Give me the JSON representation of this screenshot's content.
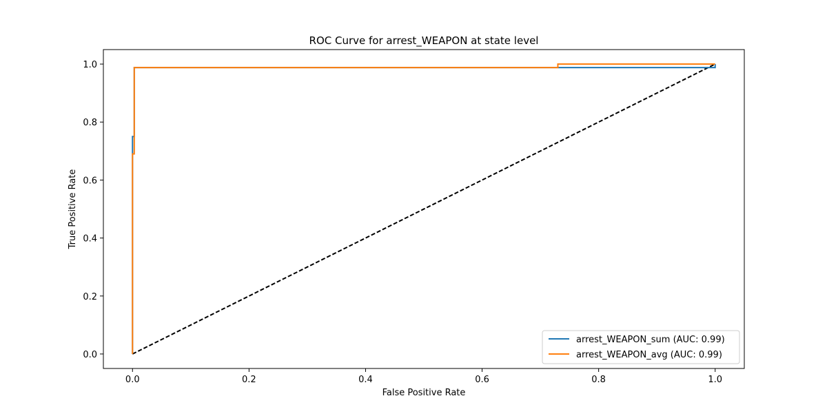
{
  "chart_data": {
    "type": "line",
    "title": "ROC Curve for arrest_WEAPON at state level",
    "xlabel": "False Positive Rate",
    "ylabel": "True Positive Rate",
    "xlim": [
      -0.05,
      1.05
    ],
    "ylim": [
      -0.05,
      1.05
    ],
    "x_ticks": [
      0.0,
      0.2,
      0.4,
      0.6,
      0.8,
      1.0
    ],
    "y_ticks": [
      0.0,
      0.2,
      0.4,
      0.6,
      0.8,
      1.0
    ],
    "x_tick_labels": [
      "0.0",
      "0.2",
      "0.4",
      "0.6",
      "0.8",
      "1.0"
    ],
    "y_tick_labels": [
      "0.0",
      "0.2",
      "0.4",
      "0.6",
      "0.8",
      "1.0"
    ],
    "grid": false,
    "legend_position": "lower right",
    "series": [
      {
        "name": "arrest_WEAPON_sum (AUC: 0.99)",
        "color": "#1f77b4",
        "x": [
          0.0,
          0.0,
          0.0,
          0.003,
          0.003,
          1.0,
          1.0
        ],
        "y": [
          0.0,
          0.69,
          0.75,
          0.75,
          0.988,
          0.988,
          1.0
        ]
      },
      {
        "name": "arrest_WEAPON_avg (AUC: 0.99)",
        "color": "#ff7f0e",
        "x": [
          0.0,
          0.0,
          0.003,
          0.003,
          0.73,
          0.73,
          1.0
        ],
        "y": [
          0.0,
          0.69,
          0.69,
          0.988,
          0.988,
          1.0,
          1.0
        ]
      }
    ],
    "reference_line": {
      "color": "#000000",
      "style": "dashed",
      "x": [
        0.0,
        1.0
      ],
      "y": [
        0.0,
        1.0
      ]
    }
  }
}
